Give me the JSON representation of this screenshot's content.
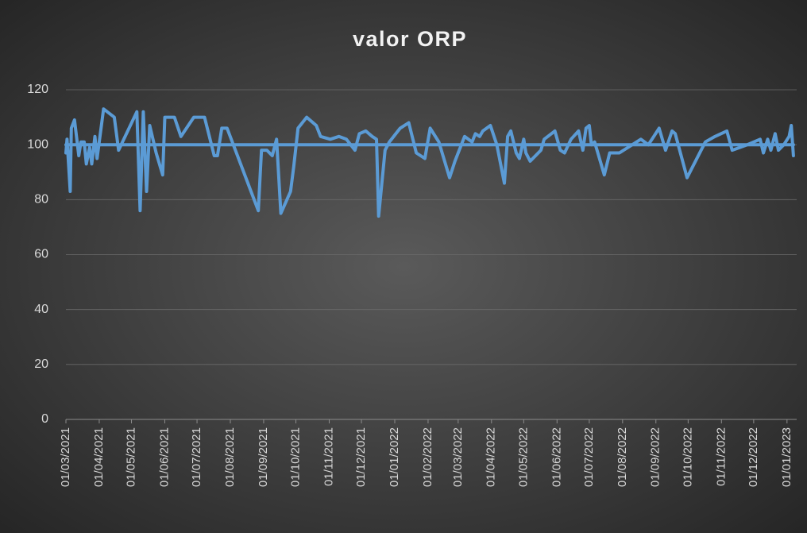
{
  "chart_data": {
    "type": "line",
    "title": "valor ORP",
    "xlim": [
      "01/03/2021",
      "10/01/2023"
    ],
    "xticks": [
      "01/03/2021",
      "01/04/2021",
      "01/05/2021",
      "01/06/2021",
      "01/07/2021",
      "01/08/2021",
      "01/09/2021",
      "01/10/2021",
      "01/11/2021",
      "01/12/2021",
      "01/01/2022",
      "01/02/2022",
      "01/03/2022",
      "01/04/2022",
      "01/05/2022",
      "01/06/2022",
      "01/07/2022",
      "01/08/2022",
      "01/09/2022",
      "01/10/2022",
      "01/11/2022",
      "01/12/2022",
      "01/01/2023"
    ],
    "ylim": [
      0,
      120
    ],
    "yticks": [
      0,
      20,
      40,
      60,
      80,
      100,
      120
    ],
    "grid": true,
    "series": [
      {
        "color": "#5b9bd5",
        "x": [
          "01/03/2021",
          "02/03/2021",
          "05/03/2021",
          "06/03/2021",
          "09/03/2021",
          "13/03/2021",
          "15/03/2021",
          "18/03/2021",
          "20/03/2021",
          "23/03/2021",
          "25/03/2021",
          "28/03/2021",
          "30/03/2021",
          "05/04/2021",
          "15/04/2021",
          "19/04/2021",
          "06/05/2021",
          "09/05/2021",
          "12/05/2021",
          "15/05/2021",
          "18/05/2021",
          "24/05/2021",
          "30/05/2021",
          "01/06/2021",
          "10/06/2021",
          "16/06/2021",
          "28/06/2021",
          "08/07/2021",
          "17/07/2021",
          "20/07/2021",
          "24/07/2021",
          "29/07/2021",
          "27/08/2021",
          "30/08/2021",
          "04/09/2021",
          "09/09/2021",
          "13/09/2021",
          "17/09/2021",
          "26/09/2021",
          "29/09/2021",
          "03/10/2021",
          "11/10/2021",
          "20/10/2021",
          "24/10/2021",
          "02/11/2021",
          "10/11/2021",
          "17/11/2021",
          "25/11/2021",
          "29/11/2021",
          "05/12/2021",
          "11/12/2021",
          "15/12/2021",
          "17/12/2021",
          "23/12/2021",
          "27/12/2021",
          "02/01/2022",
          "06/01/2022",
          "14/01/2022",
          "21/01/2022",
          "29/01/2022",
          "03/02/2022",
          "11/02/2022",
          "21/02/2022",
          "26/02/2022",
          "07/03/2022",
          "14/03/2022",
          "17/03/2022",
          "21/03/2022",
          "24/03/2022",
          "31/03/2022",
          "06/04/2022",
          "13/04/2022",
          "16/04/2022",
          "19/04/2022",
          "24/04/2022",
          "27/04/2022",
          "01/05/2022",
          "03/05/2022",
          "07/05/2022",
          "17/05/2022",
          "20/05/2022",
          "30/05/2022",
          "04/06/2022",
          "08/06/2022",
          "14/06/2022",
          "21/06/2022",
          "25/06/2022",
          "28/06/2022",
          "01/07/2022",
          "03/07/2022",
          "06/07/2022",
          "15/07/2022",
          "20/07/2022",
          "29/07/2022",
          "18/08/2022",
          "25/08/2022",
          "30/08/2022",
          "04/09/2022",
          "10/09/2022",
          "16/09/2022",
          "19/09/2022",
          "30/09/2022",
          "17/10/2022",
          "26/10/2022",
          "06/11/2022",
          "11/11/2022",
          "25/11/2022",
          "07/12/2022",
          "10/12/2022",
          "14/12/2022",
          "17/12/2022",
          "21/12/2022",
          "24/12/2022",
          "29/12/2022",
          "03/01/2023",
          "05/01/2023",
          "07/01/2023"
        ],
        "values": [
          97,
          102,
          83,
          106,
          109,
          96,
          101,
          101,
          93,
          99,
          93,
          103,
          95,
          113,
          110,
          98,
          112,
          76,
          112,
          83,
          107,
          97,
          89,
          110,
          110,
          103,
          110,
          110,
          96,
          96,
          106,
          106,
          76,
          98,
          98,
          96,
          102,
          75,
          83,
          92,
          106,
          110,
          107,
          103,
          102,
          103,
          102,
          98,
          104,
          105,
          103,
          102,
          74,
          98,
          101,
          104,
          106,
          108,
          97,
          95,
          106,
          101,
          88,
          94,
          103,
          101,
          104,
          103,
          105,
          107,
          100,
          86,
          103,
          105,
          97,
          95,
          102,
          97,
          94,
          98,
          102,
          105,
          98,
          97,
          102,
          105,
          98,
          106,
          107,
          100,
          101,
          89,
          97,
          97,
          102,
          100,
          103,
          106,
          98,
          105,
          104,
          88,
          101,
          103,
          105,
          98,
          100,
          102,
          97,
          102,
          98,
          104,
          98,
          100,
          103,
          107,
          96
        ]
      },
      {
        "color": "#5b9bd5",
        "x": [
          "01/03/2021",
          "07/01/2023"
        ],
        "values": [
          100,
          100
        ]
      }
    ]
  }
}
